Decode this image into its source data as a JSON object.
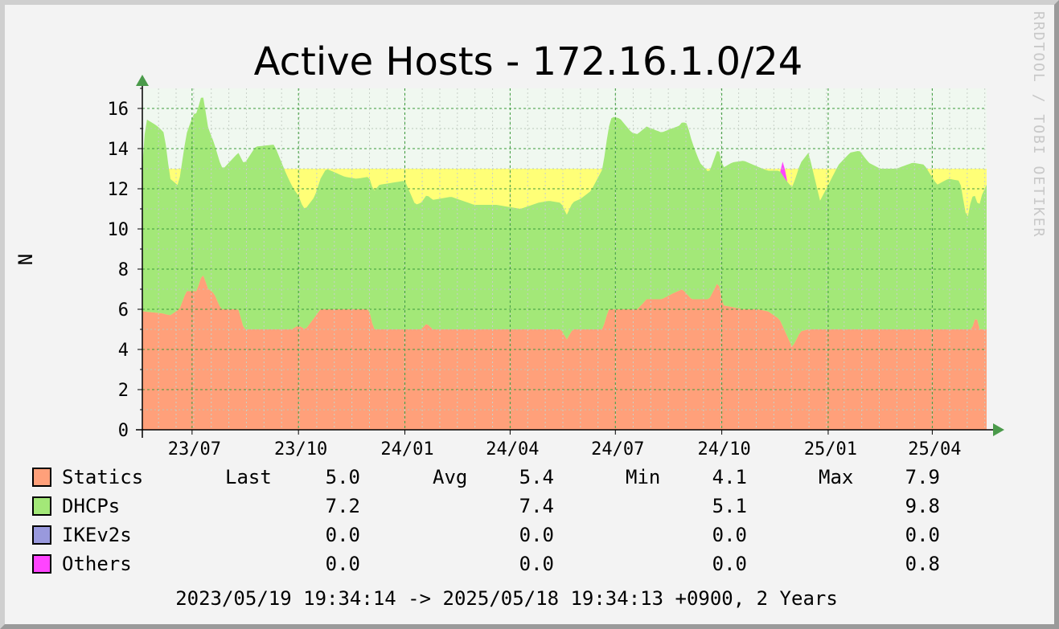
{
  "title": "Active Hosts - 172.16.1.0/24",
  "watermark": "RRDTOOL / TOBI OETIKER",
  "colors": {
    "statics": "#ffa07a",
    "dhcps": "#a3e878",
    "dhcps_peak": "#a0e8a0",
    "ikev2s": "#9999dd",
    "others": "#ff44ff",
    "yellow_band": "#ffff77",
    "upper_band": "#f0f8f0",
    "grid": "#3c9c3c",
    "axis_arrow": "#4a9a4a"
  },
  "chart_data": {
    "type": "area",
    "stacked": true,
    "title": "Active Hosts - 172.16.1.0/24",
    "xlabel": "",
    "ylabel": "N",
    "x_start": "2023-05-19",
    "x_end": "2025-05-18",
    "ylim": [
      0,
      17
    ],
    "yticks": [
      "0",
      "2",
      "4",
      "6",
      "8",
      "10",
      "12",
      "14",
      "16"
    ],
    "x_ticks": [
      {
        "label": "23/07",
        "date": "2023-07-01"
      },
      {
        "label": "23/10",
        "date": "2023-10-01"
      },
      {
        "label": "24/01",
        "date": "2024-01-01"
      },
      {
        "label": "24/04",
        "date": "2024-04-01"
      },
      {
        "label": "24/07",
        "date": "2024-07-01"
      },
      {
        "label": "24/10",
        "date": "2024-10-01"
      },
      {
        "label": "25/01",
        "date": "2025-01-01"
      },
      {
        "label": "25/04",
        "date": "2025-04-01"
      }
    ],
    "bands": [
      {
        "from": 0,
        "to": 13,
        "color": "#ffff77"
      },
      {
        "from": 13,
        "to": 17,
        "color": "#f0f8f0"
      }
    ],
    "series": [
      {
        "name": "Statics",
        "color": "#ffa07a",
        "points": [
          [
            "2023-05-19",
            5.9
          ],
          [
            "2023-06-05",
            5.8
          ],
          [
            "2023-06-12",
            5.7
          ],
          [
            "2023-06-20",
            6.0
          ],
          [
            "2023-06-26",
            6.9
          ],
          [
            "2023-07-05",
            6.9
          ],
          [
            "2023-07-10",
            7.8
          ],
          [
            "2023-07-15",
            7.0
          ],
          [
            "2023-07-20",
            6.8
          ],
          [
            "2023-07-26",
            6.0
          ],
          [
            "2023-08-10",
            6.0
          ],
          [
            "2023-08-15",
            5.0
          ],
          [
            "2023-09-25",
            5.0
          ],
          [
            "2023-10-01",
            5.2
          ],
          [
            "2023-10-07",
            5.0
          ],
          [
            "2023-10-15",
            5.6
          ],
          [
            "2023-10-20",
            6.0
          ],
          [
            "2023-12-01",
            6.0
          ],
          [
            "2023-12-05",
            5.0
          ],
          [
            "2024-01-15",
            5.0
          ],
          [
            "2024-01-20",
            5.3
          ],
          [
            "2024-01-25",
            5.0
          ],
          [
            "2024-05-15",
            5.0
          ],
          [
            "2024-05-20",
            4.5
          ],
          [
            "2024-05-25",
            5.0
          ],
          [
            "2024-06-20",
            5.0
          ],
          [
            "2024-06-25",
            6.0
          ],
          [
            "2024-07-20",
            6.0
          ],
          [
            "2024-07-28",
            6.5
          ],
          [
            "2024-08-10",
            6.5
          ],
          [
            "2024-08-20",
            6.8
          ],
          [
            "2024-08-28",
            7.0
          ],
          [
            "2024-09-05",
            6.5
          ],
          [
            "2024-09-20",
            6.5
          ],
          [
            "2024-09-28",
            7.4
          ],
          [
            "2024-10-02",
            6.2
          ],
          [
            "2024-10-20",
            6.0
          ],
          [
            "2024-11-01",
            6.0
          ],
          [
            "2024-11-10",
            5.9
          ],
          [
            "2024-11-20",
            5.5
          ],
          [
            "2024-12-01",
            4.1
          ],
          [
            "2024-12-08",
            4.9
          ],
          [
            "2024-12-15",
            5.0
          ],
          [
            "2025-05-05",
            5.0
          ],
          [
            "2025-05-09",
            5.7
          ],
          [
            "2025-05-12",
            5.0
          ],
          [
            "2025-05-18",
            5.0
          ]
        ],
        "legend": {
          "last": "5.0",
          "avg": "5.4",
          "min": "4.1",
          "max": "7.9"
        }
      },
      {
        "name": "DHCPs",
        "color": "#a3e878",
        "points": [
          [
            "2023-05-19",
            7.2
          ],
          [
            "2023-05-22",
            9.6
          ],
          [
            "2023-06-01",
            9.3
          ],
          [
            "2023-06-07",
            9.0
          ],
          [
            "2023-06-12",
            6.8
          ],
          [
            "2023-06-19",
            6.2
          ],
          [
            "2023-06-26",
            7.8
          ],
          [
            "2023-07-02",
            8.8
          ],
          [
            "2023-07-10",
            9.0
          ],
          [
            "2023-07-15",
            8.0
          ],
          [
            "2023-07-20",
            7.5
          ],
          [
            "2023-07-28",
            7.0
          ],
          [
            "2023-08-10",
            7.8
          ],
          [
            "2023-08-25",
            9.1
          ],
          [
            "2023-09-10",
            9.2
          ],
          [
            "2023-09-20",
            7.8
          ],
          [
            "2023-09-28",
            6.8
          ],
          [
            "2023-10-05",
            6.0
          ],
          [
            "2023-10-15",
            6.0
          ],
          [
            "2023-10-25",
            7.0
          ],
          [
            "2023-11-10",
            6.6
          ],
          [
            "2023-11-20",
            6.5
          ],
          [
            "2023-12-01",
            6.6
          ],
          [
            "2023-12-10",
            7.2
          ],
          [
            "2024-01-01",
            7.4
          ],
          [
            "2024-01-10",
            6.2
          ],
          [
            "2024-01-20",
            6.4
          ],
          [
            "2024-02-10",
            6.6
          ],
          [
            "2024-03-01",
            6.2
          ],
          [
            "2024-03-20",
            6.2
          ],
          [
            "2024-04-10",
            6.0
          ],
          [
            "2024-04-25",
            6.3
          ],
          [
            "2024-05-05",
            6.4
          ],
          [
            "2024-05-15",
            6.3
          ],
          [
            "2024-05-20",
            6.2
          ],
          [
            "2024-06-01",
            6.5
          ],
          [
            "2024-06-10",
            6.9
          ],
          [
            "2024-06-20",
            8.0
          ],
          [
            "2024-06-28",
            9.6
          ],
          [
            "2024-07-05",
            9.5
          ],
          [
            "2024-07-15",
            8.8
          ],
          [
            "2024-07-28",
            8.6
          ],
          [
            "2024-08-10",
            8.3
          ],
          [
            "2024-08-25",
            8.2
          ],
          [
            "2024-09-01",
            8.5
          ],
          [
            "2024-09-12",
            6.8
          ],
          [
            "2024-09-20",
            6.3
          ],
          [
            "2024-10-01",
            6.8
          ],
          [
            "2024-10-10",
            7.2
          ],
          [
            "2024-10-20",
            7.4
          ],
          [
            "2024-11-01",
            7.1
          ],
          [
            "2024-11-10",
            7.0
          ],
          [
            "2024-11-25",
            7.6
          ],
          [
            "2024-12-05",
            8.2
          ],
          [
            "2024-12-15",
            8.8
          ],
          [
            "2024-12-25",
            6.4
          ],
          [
            "2025-01-10",
            8.2
          ],
          [
            "2025-01-20",
            8.8
          ],
          [
            "2025-01-28",
            8.9
          ],
          [
            "2025-02-05",
            8.3
          ],
          [
            "2025-02-15",
            8.0
          ],
          [
            "2025-03-01",
            8.0
          ],
          [
            "2025-03-15",
            8.3
          ],
          [
            "2025-03-25",
            8.2
          ],
          [
            "2025-04-05",
            7.2
          ],
          [
            "2025-04-15",
            7.5
          ],
          [
            "2025-04-25",
            7.4
          ],
          [
            "2025-05-01",
            5.4
          ],
          [
            "2025-05-05",
            6.6
          ],
          [
            "2025-05-10",
            5.8
          ],
          [
            "2025-05-14",
            6.7
          ],
          [
            "2025-05-18",
            7.2
          ]
        ],
        "legend": {
          "last": "7.2",
          "avg": "7.4",
          "min": "5.1",
          "max": "9.8"
        }
      },
      {
        "name": "IKEv2s",
        "color": "#9999dd",
        "points": [
          [
            "2023-05-19",
            0
          ],
          [
            "2025-05-18",
            0
          ]
        ],
        "legend": {
          "last": "0.0",
          "avg": "0.0",
          "min": "0.0",
          "max": "0.0"
        }
      },
      {
        "name": "Others",
        "color": "#ff44ff",
        "points": [
          [
            "2024-11-21",
            0
          ],
          [
            "2024-11-22",
            0.5
          ],
          [
            "2024-11-23",
            0.8
          ],
          [
            "2024-11-24",
            0.7
          ],
          [
            "2024-11-25",
            0.3
          ],
          [
            "2024-11-26",
            0
          ]
        ],
        "legend": {
          "last": "0.0",
          "avg": "0.0",
          "min": "0.0",
          "max": "0.8"
        }
      }
    ],
    "legend_headers": {
      "last": "Last",
      "avg": "Avg",
      "min": "Min",
      "max": "Max"
    },
    "footer": "2023/05/19 19:34:14 -> 2025/05/18 19:34:13 +0900, 2 Years"
  }
}
